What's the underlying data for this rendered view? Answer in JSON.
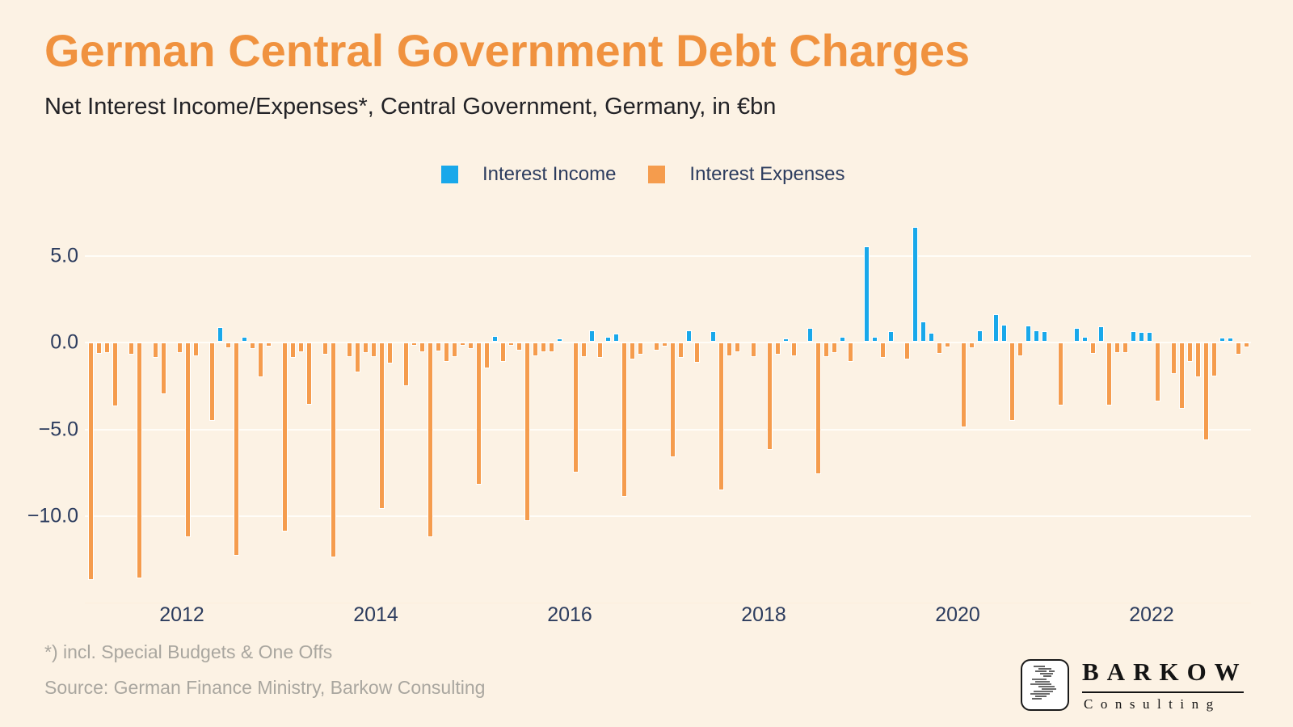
{
  "title": "German Central Government Debt Charges",
  "subtitle": "Net Interest Income/Expenses*, Central Government, Germany, in €bn",
  "legend": {
    "income_label": "Interest Income",
    "expenses_label": "Interest Expenses"
  },
  "colors": {
    "background": "#FCF2E4",
    "title": "#F0923F",
    "income": "#19A8EA",
    "expenses": "#F59C4D",
    "axis_text": "#2C3C5E",
    "footnote_text": "#A9A69F",
    "gridline": "#FFFDF8"
  },
  "footnote": "*) incl. Special Budgets & One Offs",
  "source": "Source: German Finance Ministry, Barkow Consulting",
  "logo": {
    "brand": "BARKOW",
    "subtext": "Consulting",
    "mark": "lines-icon"
  },
  "y_axis": {
    "tick_labels": [
      "5.0",
      "0.0",
      "−5.0",
      "−10.0"
    ],
    "tick_values": [
      5,
      0,
      -5,
      -10
    ]
  },
  "x_axis": {
    "tick_labels": [
      "2012",
      "2014",
      "2016",
      "2018",
      "2020",
      "2022"
    ],
    "tick_years": [
      2012,
      2014,
      2016,
      2018,
      2020,
      2022
    ]
  },
  "chart_data": {
    "type": "bar",
    "unit": "€bn",
    "frequency": "monthly",
    "start": "2011-01",
    "end": "2022-12",
    "positive_series": "Interest Income",
    "negative_series": "Interest Expenses",
    "ylim": [
      -14,
      7
    ],
    "grid": true,
    "legend_position": "top-center",
    "years": [
      {
        "year": 2011,
        "values": [
          -13.6,
          -0.55,
          -0.5,
          -3.6,
          0,
          -0.6,
          -13.5,
          0,
          -0.8,
          -2.9,
          0,
          -0.5
        ]
      },
      {
        "year": 2012,
        "values": [
          -11.1,
          -0.7,
          0,
          -4.4,
          0.75,
          -0.25,
          -12.2,
          0.2,
          -0.3,
          -1.9,
          -0.15,
          0
        ]
      },
      {
        "year": 2013,
        "values": [
          -10.8,
          -0.8,
          -0.45,
          -3.5,
          0,
          -0.6,
          -12.3,
          0,
          -0.75,
          -1.65,
          -0.5,
          -0.75
        ]
      },
      {
        "year": 2014,
        "values": [
          -9.5,
          -1.1,
          0,
          -2.4,
          -0.1,
          -0.45,
          -11.1,
          -0.4,
          -1.0,
          -0.75,
          -0.1,
          -0.3
        ]
      },
      {
        "year": 2015,
        "values": [
          -8.1,
          -1.4,
          0.25,
          -1.0,
          -0.1,
          -0.35,
          -10.2,
          -0.7,
          -0.45,
          -0.45,
          0.1,
          0
        ]
      },
      {
        "year": 2016,
        "values": [
          -7.4,
          -0.75,
          0.55,
          -0.8,
          0.2,
          0.35,
          -8.8,
          -0.9,
          -0.6,
          0,
          -0.35,
          -0.15
        ]
      },
      {
        "year": 2017,
        "values": [
          -6.5,
          -0.8,
          0.55,
          -1.05,
          0,
          0.5,
          -8.4,
          -0.7,
          -0.45,
          0,
          -0.75,
          0
        ]
      },
      {
        "year": 2018,
        "values": [
          -6.1,
          -0.6,
          0.1,
          -0.7,
          0,
          0.7,
          -7.5,
          -0.75,
          -0.5,
          0.2,
          -1.0,
          0
        ]
      },
      {
        "year": 2019,
        "values": [
          5.4,
          0.2,
          -0.8,
          0.5,
          0,
          -0.9,
          6.5,
          1.05,
          0.4,
          -0.55,
          -0.2,
          0
        ]
      },
      {
        "year": 2020,
        "values": [
          -4.8,
          -0.25,
          0.55,
          0,
          1.5,
          0.9,
          -4.4,
          -0.7,
          0.85,
          0.55,
          0.5,
          0
        ]
      },
      {
        "year": 2021,
        "values": [
          -3.55,
          0,
          0.7,
          0.2,
          -0.55,
          0.8,
          -3.55,
          -0.5,
          -0.5,
          0.5,
          0.45,
          0.45
        ]
      },
      {
        "year": 2022,
        "values": [
          -3.3,
          0,
          -1.7,
          -3.7,
          -1.0,
          -1.9,
          -5.55,
          -1.85,
          0.15,
          0.15,
          -0.6,
          -0.2
        ]
      }
    ]
  }
}
